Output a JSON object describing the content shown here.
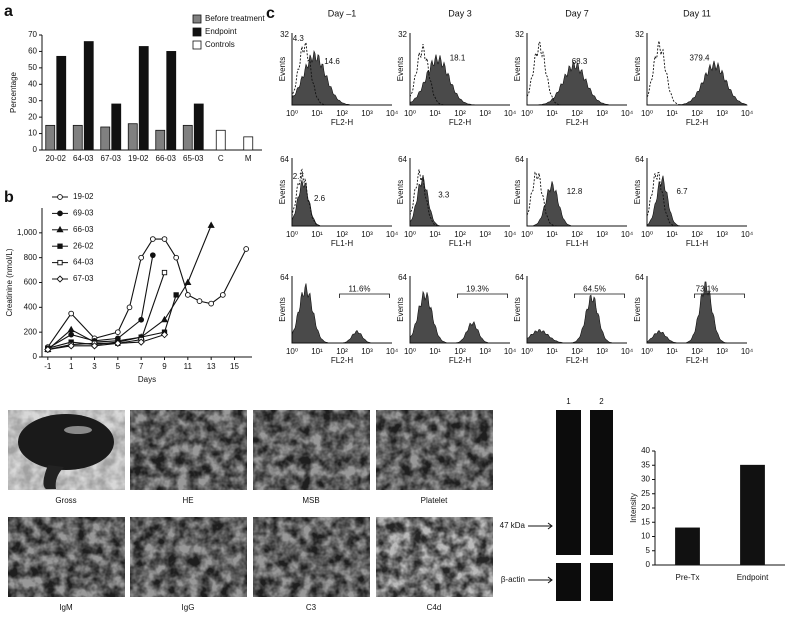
{
  "chart_data": [
    {
      "type": "bar",
      "y_label": "Percentage",
      "categories": [
        "20-02",
        "64-03",
        "67-03",
        "19-02",
        "66-03",
        "65-03",
        "C",
        "M"
      ],
      "series": [
        {
          "name": "Before treatment",
          "color": "#808080",
          "values": [
            15,
            15,
            14,
            16,
            12,
            15,
            null,
            null
          ]
        },
        {
          "name": "Endpoint",
          "color": "#111111",
          "values": [
            57,
            66,
            28,
            63,
            60,
            28,
            null,
            null
          ]
        },
        {
          "name": "Controls",
          "color": "#ffffff",
          "values": [
            null,
            null,
            null,
            null,
            null,
            null,
            12,
            8
          ]
        }
      ],
      "ylim": [
        0,
        70
      ],
      "yticks": [
        0,
        10,
        20,
        30,
        40,
        50,
        60,
        70
      ],
      "legend": "top-right",
      "grid": false
    },
    {
      "type": "line",
      "x_label": "Days",
      "y_label": "Creatinine (nmol/L)",
      "series": [
        {
          "name": "19-02",
          "color": "#111111",
          "marker": "circle-open",
          "x": [
            -1,
            1,
            3,
            5,
            6,
            7,
            8,
            9,
            10,
            11,
            12,
            13,
            14,
            16
          ],
          "values": [
            80,
            350,
            150,
            200,
            400,
            800,
            950,
            950,
            800,
            500,
            450,
            430,
            500,
            870
          ]
        },
        {
          "name": "69-03",
          "color": "#111111",
          "marker": "circle",
          "x": [
            -1,
            1,
            3,
            5,
            7,
            8
          ],
          "values": [
            70,
            180,
            130,
            150,
            300,
            820
          ]
        },
        {
          "name": "66-03",
          "color": "#111111",
          "marker": "triangle",
          "x": [
            -1,
            1,
            3,
            5,
            7,
            9,
            11,
            13
          ],
          "values": [
            60,
            220,
            120,
            130,
            160,
            300,
            600,
            1060
          ]
        },
        {
          "name": "26-02",
          "color": "#111111",
          "marker": "square",
          "x": [
            -1,
            1,
            3,
            5,
            7,
            9,
            10
          ],
          "values": [
            70,
            120,
            100,
            120,
            160,
            200,
            500
          ]
        },
        {
          "name": "64-03",
          "color": "#111111",
          "marker": "square-open",
          "x": [
            -1,
            1,
            3,
            5,
            7,
            9
          ],
          "values": [
            60,
            100,
            110,
            110,
            140,
            680
          ]
        },
        {
          "name": "67-03",
          "color": "#111111",
          "marker": "diamond-open",
          "x": [
            -1,
            1,
            3,
            5,
            7,
            9
          ],
          "values": [
            60,
            90,
            90,
            110,
            120,
            180
          ]
        }
      ],
      "xlim": [
        -1.5,
        16.5
      ],
      "xticks": [
        -1,
        1,
        3,
        5,
        7,
        9,
        11,
        13,
        15
      ],
      "ylim": [
        0,
        1200
      ],
      "yticks": [
        0,
        200,
        400,
        600,
        800,
        {
          "value": 1000,
          "label": "1,000"
        }
      ],
      "legend": "top-left",
      "grid": false
    },
    {
      "type": "bar",
      "y_label": "Intensity",
      "categories": [
        "Pre-Tx",
        "Endpoint"
      ],
      "values": [
        13,
        35
      ],
      "color": "#111111",
      "ylim": [
        0,
        40
      ],
      "yticks": [
        0,
        5,
        10,
        15,
        20,
        25,
        30,
        35,
        40
      ],
      "grid": false
    }
  ],
  "panel_labels": [
    "a",
    "b",
    "c"
  ],
  "flow_cytometry": {
    "columns": [
      "Day –1",
      "Day 3",
      "Day 7",
      "Day 11"
    ],
    "x_tick_labels": [
      "10⁰",
      "10¹",
      "10²",
      "10³",
      "10⁴"
    ],
    "rows": [
      {
        "x_label": "FL2-H",
        "y_label": "Events",
        "y_max": "32",
        "annotations": [
          [
            "4.3",
            "14.6"
          ],
          [
            "18.1"
          ],
          [
            "68.3"
          ],
          [
            "379.4"
          ]
        ]
      },
      {
        "x_label": "FL1-H",
        "y_label": "Events",
        "y_max": "64",
        "annotations": [
          [
            "2.7",
            "2.6"
          ],
          [
            "3.3"
          ],
          [
            "12.8"
          ],
          [
            "6.7"
          ]
        ]
      },
      {
        "x_label": "FL2-H",
        "y_label": "Events",
        "y_max": "64",
        "annotations": [
          [
            "11.6%"
          ],
          [
            "19.3%"
          ],
          [
            "64.5%"
          ],
          [
            "73.1%"
          ]
        ]
      }
    ]
  },
  "histology": {
    "labels": [
      "Gross",
      "HE",
      "MSB",
      "Platelet",
      "IgM",
      "IgG",
      "C3",
      "C4d"
    ]
  },
  "western_blot": {
    "lanes": [
      "1",
      "2"
    ],
    "bands": [
      "47 kDa",
      "β-actin"
    ]
  }
}
